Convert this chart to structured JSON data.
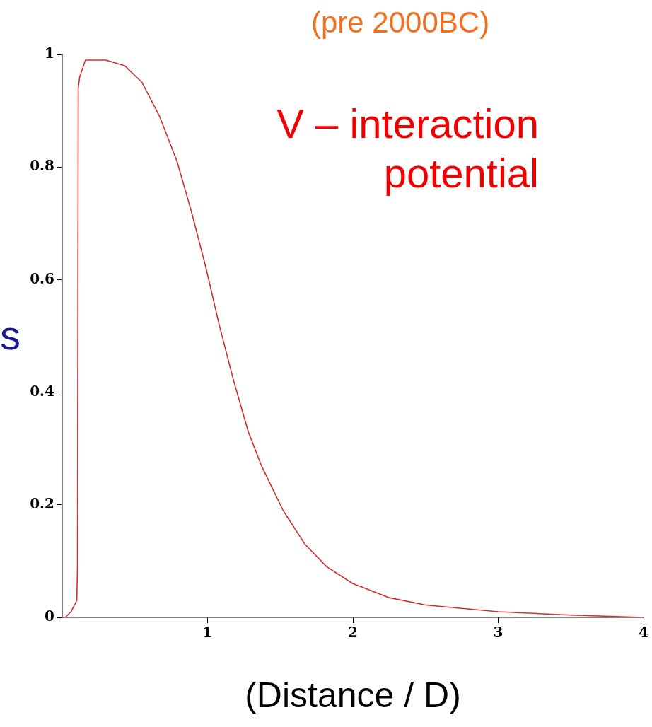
{
  "chart_data": {
    "type": "line",
    "xlabel": "(Distance / D)",
    "annotations": [
      "(pre 2000BC)",
      "V – interaction potential",
      "s"
    ],
    "series": [
      {
        "color": "#d03030",
        "x": [
          0.02,
          0.06,
          0.1,
          0.105,
          0.11,
          0.12,
          0.16,
          0.18,
          0.3,
          0.43,
          0.55,
          0.67,
          0.79,
          0.89,
          0.99,
          1.08,
          1.18,
          1.28,
          1.37,
          1.52,
          1.67,
          1.82,
          2.0,
          2.25,
          2.5,
          3.0,
          3.5,
          4.0
        ],
        "values": [
          0,
          0.01,
          0.03,
          0.09,
          0.94,
          0.96,
          0.99,
          0.99,
          0.99,
          0.98,
          0.95,
          0.89,
          0.81,
          0.72,
          0.62,
          0.52,
          0.42,
          0.33,
          0.27,
          0.19,
          0.13,
          0.09,
          0.06,
          0.035,
          0.022,
          0.01,
          0.004,
          0
        ]
      }
    ],
    "xlim": [
      0,
      4
    ],
    "xticks": [
      1,
      2,
      3,
      4
    ],
    "ylim": [
      0,
      1
    ],
    "yticks": [
      0,
      0.2,
      0.4,
      0.6,
      0.8,
      1
    ],
    "grid": false,
    "legend": false,
    "marker": "none",
    "line_style": "solid"
  }
}
